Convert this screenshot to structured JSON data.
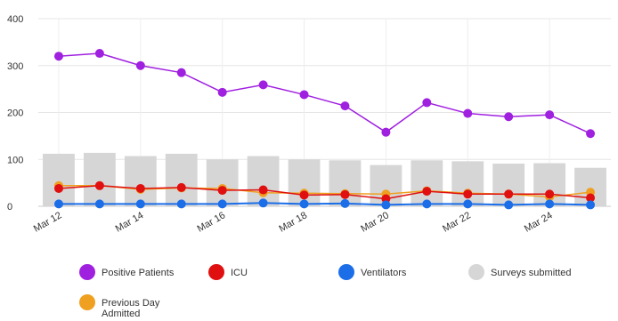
{
  "chart_data": {
    "type": "bar",
    "categories": [
      "Mar 12",
      "Mar 13",
      "Mar 14",
      "Mar 15",
      "Mar 16",
      "Mar 17",
      "Mar 18",
      "Mar 19",
      "Mar 20",
      "Mar 21",
      "Mar 22",
      "Mar 23",
      "Mar 24",
      "Mar 25"
    ],
    "x_tick_labels": [
      "Mar 12",
      "Mar 14",
      "Mar 16",
      "Mar 18",
      "Mar 20",
      "Mar 22",
      "Mar 24"
    ],
    "ylim": [
      0,
      400
    ],
    "y_ticks": [
      "0",
      "100",
      "200",
      "300",
      "400"
    ],
    "grid": true,
    "legend_position": "bottom",
    "series": [
      {
        "name": "Positive Patients",
        "kind": "line",
        "color": "#a020e0",
        "values": [
          320,
          326,
          300,
          285,
          243,
          259,
          238,
          214,
          158,
          221,
          198,
          191,
          195,
          155
        ]
      },
      {
        "name": "ICU",
        "kind": "line",
        "color": "#e01010",
        "values": [
          38,
          44,
          38,
          40,
          34,
          35,
          24,
          25,
          16,
          32,
          26,
          26,
          26,
          18
        ]
      },
      {
        "name": "Ventilators",
        "kind": "line",
        "color": "#1b6ee8",
        "values": [
          5,
          5,
          5,
          5,
          5,
          7,
          5,
          6,
          3,
          5,
          5,
          3,
          5,
          3
        ]
      },
      {
        "name": "Surveys submitted",
        "kind": "bar",
        "color": "#d6d6d6",
        "values": [
          112,
          114,
          107,
          112,
          100,
          107,
          100,
          98,
          88,
          98,
          96,
          91,
          92,
          82
        ]
      },
      {
        "name": "Previous Day Admitted",
        "kind": "line",
        "color": "#f0a020",
        "values": [
          44,
          44,
          36,
          39,
          38,
          29,
          28,
          27,
          26,
          33,
          28,
          26,
          20,
          30
        ]
      }
    ]
  }
}
